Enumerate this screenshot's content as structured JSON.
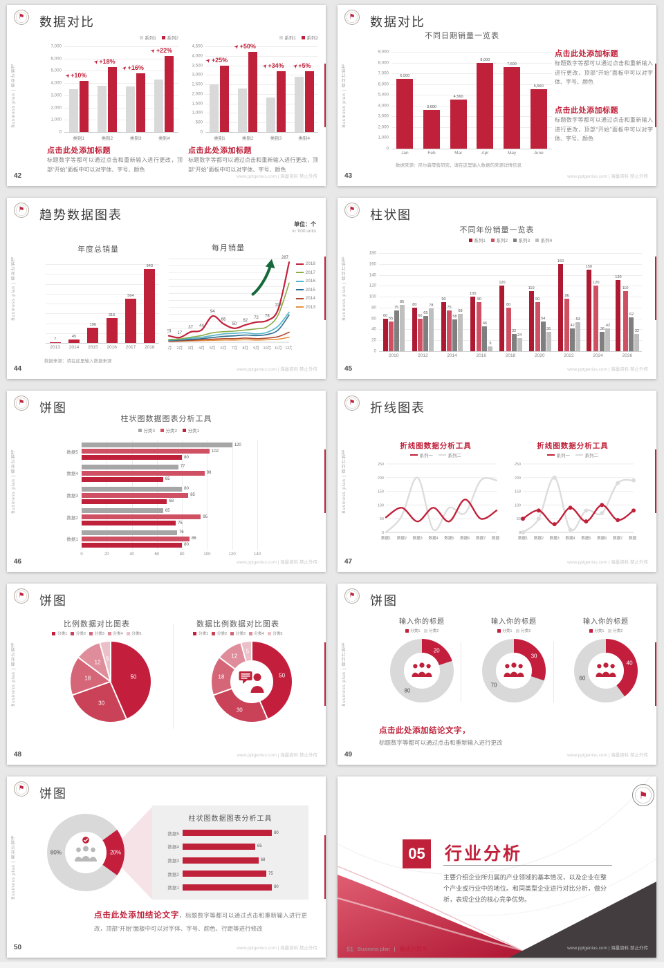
{
  "footer_right": "www.pptgenius.com | 海量资料 禁止外传",
  "sidebar_text": "Business plan | 商业计划书",
  "accent_color": "#c0213a",
  "slides": {
    "s42": {
      "page": "42",
      "title": "数据对比",
      "left_block": {
        "heading": "点击此处添加标题",
        "body": "标题数字等都可以通过点击和重新输入进行更改，顶部“开始”面板中可以对字体、字号、颜色"
      },
      "right_block": {
        "heading": "点击此处添加标题",
        "body": "标题数字等都可以通过点击和重新输入进行更改，顶部“开始”面板中可以对字体、字号、颜色"
      }
    },
    "s43": {
      "page": "43",
      "title": "数据对比",
      "chart_title": "不同日期销量一览表",
      "source": "数据来源：尼尔森零售研究，请在这里输入数据的来源详情信息",
      "block1": {
        "heading": "点击此处添加标题",
        "body": "标题数字等都可以通过点击和重新输入进行更改，顶部“开始”面板中可以对字体、字号、颜色"
      },
      "block2": {
        "heading": "点击此处添加标题",
        "body": "标题数字等都可以通过点击和重新输入进行更改，顶部“开始”面板中可以对字体、字号、颜色"
      }
    },
    "s44": {
      "page": "44",
      "title": "趋势数据图表",
      "unit_cn": "单位：个",
      "unit_en": "in '000 units",
      "chart1_title": "年度总销量",
      "chart2_title": "每月销量",
      "source": "数据来源：请在这里输入数据来源"
    },
    "s45": {
      "page": "45",
      "title": "柱状图",
      "chart_title": "不同年份销量一览表"
    },
    "s46": {
      "page": "46",
      "title": "饼图",
      "chart_title": "柱状图数据图表分析工具"
    },
    "s47": {
      "page": "47",
      "title": "折线图表",
      "chart1_title": "折线图数据分析工具",
      "chart2_title": "折线图数据分析工具"
    },
    "s48": {
      "page": "48",
      "title": "饼图",
      "chart1_title": "比例数据对比图表",
      "chart2_title": "数据比例数据对比图表"
    },
    "s49": {
      "page": "49",
      "title": "饼图",
      "chart_titles": [
        "输入你的标题",
        "输入你的标题",
        "输入你的标题"
      ],
      "conclusion_heading": "点击此处添加结论文字，",
      "conclusion_body": "标题数字等都可以通过点击和重新输入进行更改"
    },
    "s50": {
      "page": "50",
      "title": "饼图",
      "panel_title": "柱状图数据图表分析工具",
      "conclusion_heading": "点击此处添加结论文字",
      "conclusion_body": "，标题数字等都可以通过点击和重新输入进行更改，顶部“开始”面板中可以对字体、字号、颜色、行距等进行修改"
    },
    "s51": {
      "page": "51",
      "number": "05",
      "title": "行业分析",
      "body": "主要介绍企业所归属的产业领域的基本情况，以及企业在整个产业或行业中的地位。和同类型企业进行对比分析，做分析，表现企业的核心竞争优势。",
      "footer_brand_en": "Business plan",
      "footer_sep": "|",
      "footer_brand_cn": "商业计划书"
    }
  },
  "chart_data": [
    {
      "type": "vbar",
      "slide": "42",
      "categories": [
        "类别1",
        "类别2",
        "类别3",
        "类别4"
      ],
      "series": [
        {
          "name": "系列1",
          "color": "#d9d9d9",
          "values": [
            3500,
            3800,
            3700,
            4300
          ]
        },
        {
          "name": "系列2",
          "color": "#c0213a",
          "values": [
            4200,
            5300,
            4800,
            6200
          ]
        }
      ],
      "annotations": [
        "+10%",
        "+18%",
        "+16%",
        "+22%"
      ],
      "ylim": [
        0,
        7000
      ],
      "ystep": 1000,
      "yticks": true,
      "yfmt": "k",
      "legend": "right"
    },
    {
      "type": "vbar",
      "slide": "42",
      "categories": [
        "类别1",
        "类别2",
        "类别3",
        "类别4"
      ],
      "series": [
        {
          "name": "系列1",
          "color": "#d9d9d9",
          "values": [
            2500,
            2300,
            1800,
            2900
          ]
        },
        {
          "name": "系列2",
          "color": "#c0213a",
          "values": [
            3500,
            4200,
            3200,
            3200
          ]
        }
      ],
      "annotations": [
        "+25%",
        "+50%",
        "+34%",
        "+5%"
      ],
      "ylim": [
        0,
        4500
      ],
      "ystep": 500,
      "yticks": true,
      "yfmt": "k",
      "legend": "right"
    },
    {
      "type": "vbar",
      "slide": "43",
      "categories": [
        "Jan",
        "Feb",
        "Mar",
        "Apr",
        "May",
        "June"
      ],
      "series": [
        {
          "name": "销量",
          "color": "#c0213a",
          "values": [
            6500,
            3600,
            4560,
            8000,
            7600,
            5560
          ]
        }
      ],
      "labels": true,
      "ylim": [
        0,
        9000
      ],
      "ystep": 1000,
      "yticks": true,
      "yfmt": "k"
    },
    {
      "type": "vbar",
      "slide": "44",
      "title": "年度总销量",
      "categories": [
        "2013",
        "2014",
        "2015",
        "2016",
        "2017",
        "2018"
      ],
      "series": [
        {
          "name": "年度总销量",
          "color": "#c0213a",
          "values": [
            7,
            45,
            196,
            316,
            564,
            943
          ]
        }
      ],
      "labels": true,
      "ylim": [
        0,
        1000
      ],
      "ystep": 125,
      "yticks": false
    },
    {
      "type": "line",
      "slide": "44",
      "title": "每月销量",
      "categories": [
        "1月",
        "2月",
        "3月",
        "4月",
        "5月",
        "6月",
        "7月",
        "8月",
        "9月",
        "10月",
        "11月",
        "12月"
      ],
      "ylim": [
        0,
        300
      ],
      "ystep": 25,
      "yticks": false,
      "smooth": true,
      "series": [
        {
          "name": "2018",
          "color": "#c0213a",
          "w": 2.2,
          "labels": true,
          "values": [
            23,
            17,
            37,
            44,
            94,
            66,
            50,
            62,
            72,
            78,
            118,
            287
          ]
        },
        {
          "name": "2017",
          "color": "#8aab44",
          "values": [
            10,
            12,
            18,
            24,
            34,
            38,
            40,
            44,
            48,
            56,
            98,
            212
          ]
        },
        {
          "name": "2016",
          "color": "#52b5c9",
          "values": [
            8,
            10,
            14,
            18,
            24,
            30,
            32,
            34,
            30,
            36,
            58,
            108
          ]
        },
        {
          "name": "2015",
          "color": "#2e6e91",
          "values": [
            6,
            8,
            10,
            13,
            17,
            21,
            23,
            26,
            24,
            28,
            44,
            98
          ]
        },
        {
          "name": "2014",
          "color": "#ad4a2d",
          "values": [
            4,
            5,
            7,
            9,
            11,
            13,
            13,
            15,
            13,
            15,
            20,
            36
          ]
        },
        {
          "name": "2013",
          "color": "#e8923f",
          "values": [
            3,
            4,
            5,
            6,
            7,
            8,
            8,
            9,
            8,
            9,
            11,
            18
          ]
        }
      ]
    },
    {
      "type": "vbar",
      "slide": "45",
      "title": "不同年份销量一览表",
      "categories": [
        "2010",
        "2012",
        "2014",
        "2016",
        "2018",
        "2020",
        "2022",
        "2024",
        "2026"
      ],
      "series": [
        {
          "name": "系列1",
          "color": "#ad1a32",
          "values": [
            60,
            80,
            90,
            100,
            120,
            110,
            160,
            150,
            130
          ]
        },
        {
          "name": "系列2",
          "color": "#cf5063",
          "values": [
            55,
            60,
            75,
            90,
            80,
            90,
            96,
            120,
            110
          ]
        },
        {
          "name": "系列3",
          "color": "#7f7f7f",
          "values": [
            75,
            65,
            58,
            46,
            32,
            54,
            42,
            36,
            62
          ]
        },
        {
          "name": "系列4",
          "color": "#bfbfbf",
          "values": [
            85,
            78,
            68,
            9,
            24,
            36,
            53,
            42,
            32
          ]
        }
      ],
      "labels": true,
      "ylim": [
        0,
        180
      ],
      "ystep": 20,
      "yticks": true,
      "legend": "center"
    },
    {
      "type": "hbar",
      "slide": "46",
      "title": "柱状图数据图表分析工具",
      "categories": [
        "数据5",
        "数据4",
        "数据3",
        "数据2",
        "数据1"
      ],
      "series": [
        {
          "name": "分类3",
          "color": "#a6a6a6",
          "values": [
            120,
            77,
            80,
            65,
            76
          ]
        },
        {
          "name": "分类2",
          "color": "#cf5063",
          "values": [
            102,
            98,
            85,
            95,
            86
          ]
        },
        {
          "name": "分类1",
          "color": "#c0213a",
          "values": [
            80,
            65,
            68,
            75,
            80
          ]
        }
      ],
      "labels": true,
      "xlim": [
        0,
        140
      ],
      "xstep": 20,
      "xticks": true,
      "legend": "center"
    },
    {
      "type": "line",
      "slide": "47",
      "title": "折线图数据分析工具",
      "categories": [
        "数据1",
        "数据2",
        "数据3",
        "数据4",
        "数据5",
        "数据6",
        "数据7",
        "数据8"
      ],
      "ylim": [
        0,
        250
      ],
      "ystep": 50,
      "yticks": true,
      "smooth": true,
      "series": [
        {
          "name": "系列一",
          "color": "#c0213a",
          "w": 2.4,
          "values": [
            55,
            90,
            40,
            90,
            40,
            120,
            50,
            80
          ]
        },
        {
          "name": "系列二",
          "color": "#dcdcdc",
          "w": 2.4,
          "values": [
            0,
            60,
            200,
            10,
            90,
            70,
            190,
            190
          ]
        }
      ]
    },
    {
      "type": "line",
      "slide": "47",
      "title": "折线图数据分析工具",
      "markers": true,
      "categories": [
        "数据1",
        "数据2",
        "数据3",
        "数据4",
        "数据5",
        "数据6",
        "数据7",
        "数据8"
      ],
      "ylim": [
        0,
        250
      ],
      "ystep": 50,
      "yticks": true,
      "smooth": true,
      "series": [
        {
          "name": "系列一",
          "color": "#c0213a",
          "w": 2.4,
          "values": [
            50,
            80,
            30,
            90,
            40,
            100,
            45,
            80
          ]
        },
        {
          "name": "系列二",
          "color": "#dcdcdc",
          "w": 2.4,
          "values": [
            0,
            50,
            200,
            10,
            80,
            70,
            180,
            190
          ]
        }
      ]
    },
    {
      "type": "pie",
      "slide": "48",
      "title": "比例数据对比图表",
      "values": [
        50,
        30,
        18,
        12,
        5
      ],
      "labels": [
        "50",
        "30",
        "18",
        "12",
        "5"
      ],
      "colors": [
        "#c31f3d",
        "#ca4257",
        "#d56678",
        "#df8d9b",
        "#ecc0c8"
      ],
      "sep": true,
      "legendNames": [
        "分类1",
        "分类2",
        "分类3",
        "分类4",
        "分类5"
      ]
    },
    {
      "type": "pie",
      "slide": "48",
      "title": "数据比例数据对比图表",
      "values": [
        50,
        30,
        18,
        12,
        5
      ],
      "labels": [
        "50",
        "30",
        "18",
        "12",
        "5"
      ],
      "colors": [
        "#c31f3d",
        "#ca4257",
        "#d56678",
        "#df8d9b",
        "#ecc0c8"
      ],
      "sep": true,
      "hole": 0.54,
      "legendNames": [
        "分类1",
        "分类2",
        "分类3",
        "分类4",
        "分类5"
      ]
    },
    {
      "type": "pie",
      "slide": "49",
      "title": "输入你的标题",
      "values": [
        20,
        80
      ],
      "labels": [
        "20",
        "80"
      ],
      "colors": [
        "#c31f3d",
        "#d9d9d9"
      ],
      "labelColors": [
        "#ffffff",
        "#4a4a4a"
      ],
      "hole": 0.56,
      "legendNames": [
        "分类1",
        "分类2"
      ]
    },
    {
      "type": "pie",
      "slide": "49",
      "title": "输入你的标题",
      "values": [
        30,
        70
      ],
      "labels": [
        "30",
        "70"
      ],
      "colors": [
        "#c31f3d",
        "#d9d9d9"
      ],
      "labelColors": [
        "#ffffff",
        "#4a4a4a"
      ],
      "hole": 0.56,
      "legendNames": [
        "分类1",
        "分类2"
      ]
    },
    {
      "type": "pie",
      "slide": "49",
      "title": "输入你的标题",
      "values": [
        40,
        60
      ],
      "labels": [
        "40",
        "60"
      ],
      "colors": [
        "#c31f3d",
        "#d9d9d9"
      ],
      "labelColors": [
        "#ffffff",
        "#4a4a4a"
      ],
      "hole": 0.56,
      "legendNames": [
        "分类1",
        "分类2"
      ]
    },
    {
      "type": "pie",
      "slide": "50",
      "values": [
        20,
        80
      ],
      "labels": [
        "20%",
        "80%"
      ],
      "start": 54,
      "colors": [
        "#c31f3d",
        "#d9d9d9"
      ],
      "labelColors": [
        "#ffffff",
        "#4a4a4a"
      ],
      "hole": 0.54
    },
    {
      "type": "hbar",
      "slide": "50",
      "categories": [
        "数据5",
        "数据4",
        "数据3",
        "数据2",
        "数据1"
      ],
      "series": [
        {
          "name": "数据",
          "color": "#c0213a",
          "values": [
            80,
            65,
            68,
            75,
            80
          ]
        }
      ],
      "labels": true,
      "xlim": [
        0,
        88
      ],
      "xticks": false
    }
  ]
}
